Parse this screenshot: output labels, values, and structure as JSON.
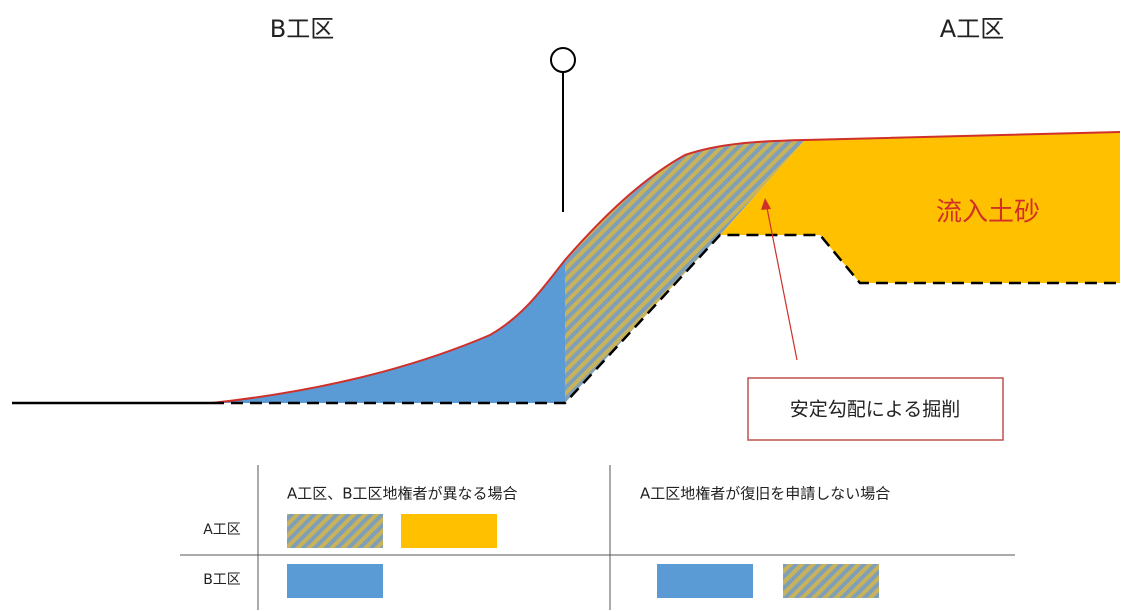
{
  "labels": {
    "b_zone": "B工区",
    "a_zone": "A工区",
    "sediment": "流入土砂",
    "callout": "安定勾配による掘削"
  },
  "table": {
    "columns": [
      "A工区、B工区地権者が異なる場合",
      "A工区地権者が復旧を申請しない場合"
    ],
    "rows": [
      "A工区",
      "B工区"
    ]
  }
}
